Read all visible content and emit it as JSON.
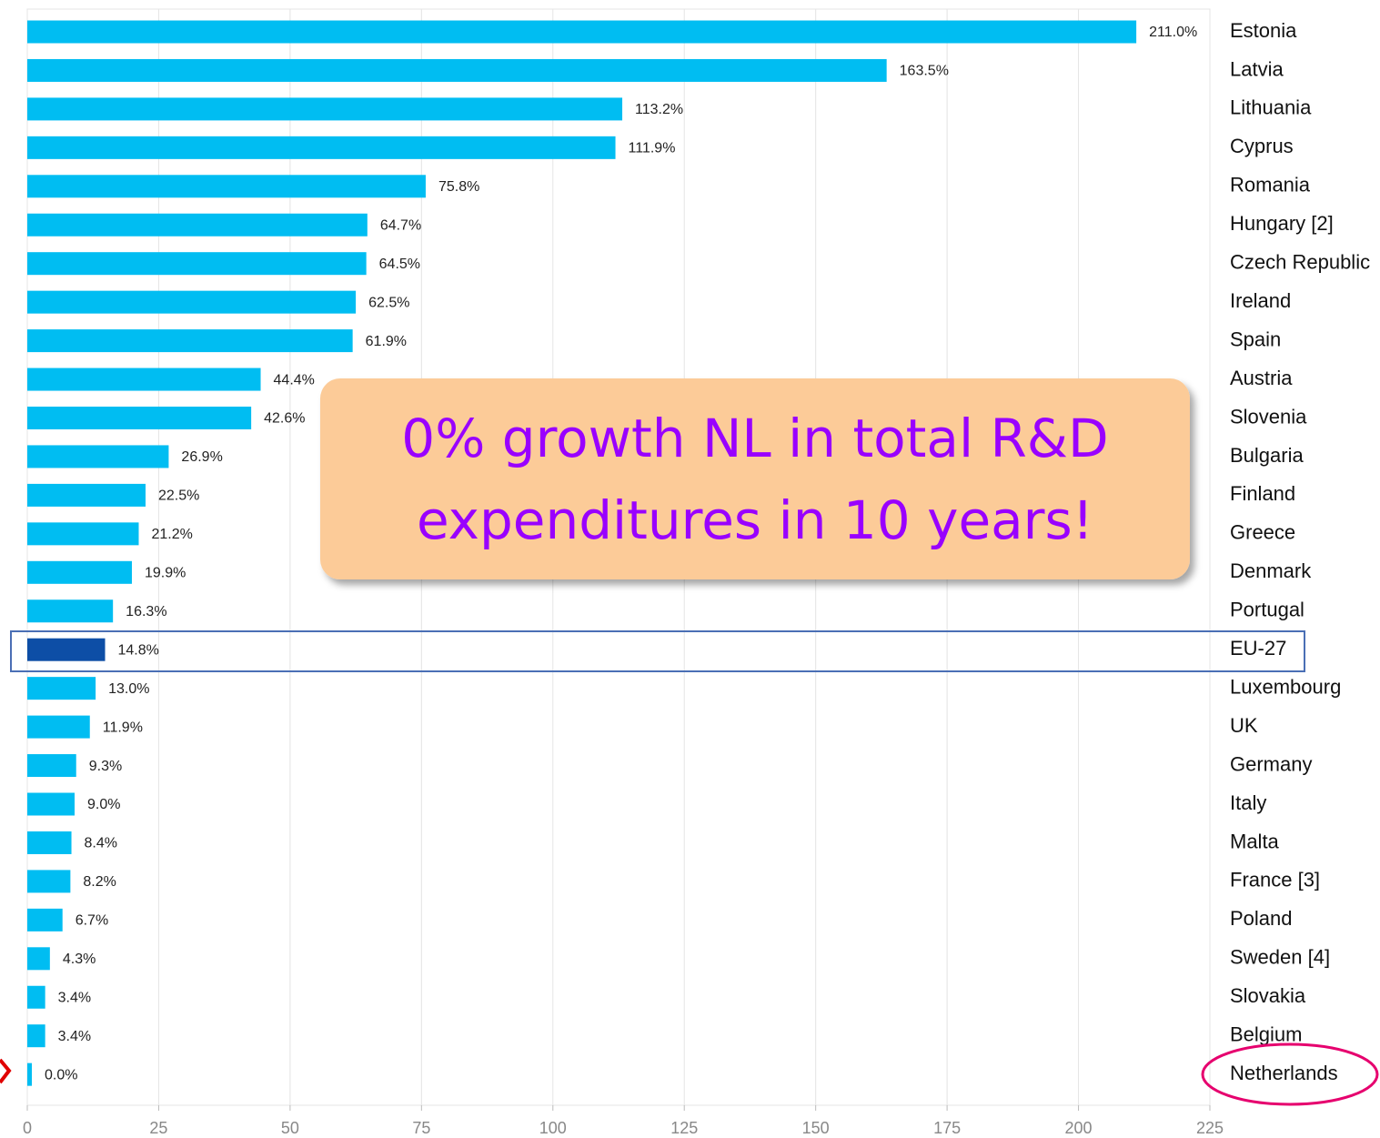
{
  "chart_data": {
    "type": "barh",
    "categories": [
      "Estonia",
      "Latvia",
      "Lithuania",
      "Cyprus",
      "Romania",
      "Hungary [2]",
      "Czech Republic",
      "Ireland",
      "Spain",
      "Austria",
      "Slovenia",
      "Bulgaria",
      "Finland",
      "Greece",
      "Denmark",
      "Portugal",
      "EU-27",
      "Luxembourg",
      "UK",
      "Germany",
      "Italy",
      "Malta",
      "France [3]",
      "Poland",
      "Sweden [4]",
      "Slovakia",
      "Belgium",
      "Netherlands"
    ],
    "values": [
      211.0,
      163.5,
      113.2,
      111.9,
      75.8,
      64.7,
      64.5,
      62.5,
      61.9,
      44.4,
      42.6,
      26.9,
      22.5,
      21.2,
      19.9,
      16.3,
      14.8,
      13.0,
      11.9,
      9.3,
      9.0,
      8.4,
      8.2,
      6.7,
      4.3,
      3.4,
      3.4,
      0.0
    ],
    "value_labels": [
      "211.0%",
      "163.5%",
      "113.2%",
      "111.9%",
      "75.8%",
      "64.7%",
      "64.5%",
      "62.5%",
      "61.9%",
      "44.4%",
      "42.6%",
      "26.9%",
      "22.5%",
      "21.2%",
      "19.9%",
      "16.3%",
      "14.8%",
      "13.0%",
      "11.9%",
      "9.3%",
      "9.0%",
      "8.4%",
      "8.2%",
      "6.7%",
      "4.3%",
      "3.4%",
      "3.4%",
      "0.0%"
    ],
    "colors": [
      "#00bdf2",
      "#00bdf2",
      "#00bdf2",
      "#00bdf2",
      "#00bdf2",
      "#00bdf2",
      "#00bdf2",
      "#00bdf2",
      "#00bdf2",
      "#00bdf2",
      "#00bdf2",
      "#00bdf2",
      "#00bdf2",
      "#00bdf2",
      "#00bdf2",
      "#00bdf2",
      "#0d4ea6",
      "#00bdf2",
      "#00bdf2",
      "#00bdf2",
      "#00bdf2",
      "#00bdf2",
      "#00bdf2",
      "#00bdf2",
      "#00bdf2",
      "#00bdf2",
      "#00bdf2",
      "#00bdf2"
    ],
    "xlim": [
      0,
      225
    ],
    "xticks": [
      0,
      25,
      50,
      75,
      100,
      125,
      150,
      175,
      200,
      225
    ],
    "grid": true,
    "annotation": [
      "0% growth NL in total R&D",
      "expenditures in 10 years!"
    ]
  }
}
